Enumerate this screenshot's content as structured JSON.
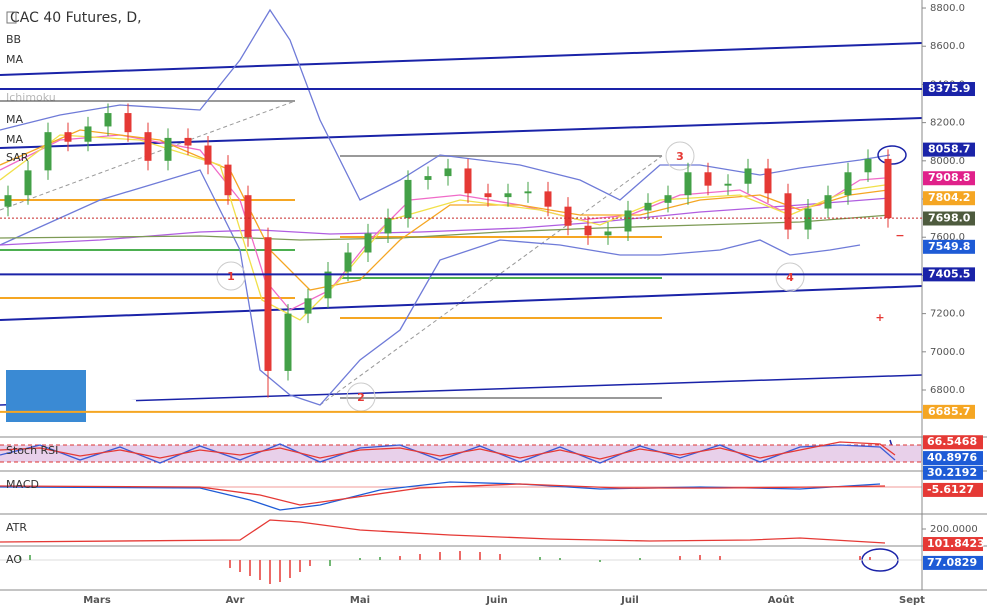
{
  "chart_data": {
    "type": "candlestick",
    "title": "CAC 40 Futures, D,",
    "indicators": [
      "BB",
      "MA",
      "Ichimoku",
      "MA",
      "MA",
      "SAR"
    ],
    "ylim": [
      6554,
      8842
    ],
    "yticks": [
      {
        "value": 8800,
        "label": "8800.0"
      },
      {
        "value": 8600,
        "label": "8600.0"
      },
      {
        "value": 8400,
        "label": "8400.0"
      },
      {
        "value": 8200,
        "label": "8200.0"
      },
      {
        "value": 8000,
        "label": "8000.0"
      },
      {
        "value": 7800,
        "label": "7800.0"
      },
      {
        "value": 7600,
        "label": "7600.0"
      },
      {
        "value": 7400,
        "label": "7400.0"
      },
      {
        "value": 7200,
        "label": "7200.0"
      },
      {
        "value": 7000,
        "label": "7000.0"
      },
      {
        "value": 6800,
        "label": "6800.0"
      }
    ],
    "xlabels": [
      "Mars",
      "Avr",
      "Mai",
      "Juin",
      "Juil",
      "Août",
      "Sept"
    ],
    "up_color": "#43a047",
    "down_color": "#e53935",
    "open": [
      7760,
      7820,
      7950,
      8150,
      8100,
      8180,
      8250,
      8150,
      8000,
      8120,
      8080,
      7980,
      7820,
      7600,
      6900,
      7200,
      7280,
      7420,
      7520,
      7620,
      7700,
      7900,
      7920,
      7960,
      7830,
      7810,
      7830,
      7840,
      7760,
      7660,
      7610,
      7630,
      7740,
      7780,
      7820,
      7940,
      7870,
      7880,
      7960,
      7830,
      7640,
      7750,
      7820,
      7940,
      8010
    ],
    "high": [
      7870,
      8000,
      8200,
      8200,
      8230,
      8300,
      8300,
      8200,
      8170,
      8170,
      8130,
      8030,
      7870,
      7650,
      7250,
      7330,
      7470,
      7570,
      7670,
      7750,
      7950,
      7970,
      8010,
      8010,
      7880,
      7880,
      7890,
      7890,
      7810,
      7710,
      7680,
      7790,
      7830,
      7870,
      7990,
      7990,
      7930,
      8010,
      8010,
      7880,
      7800,
      7870,
      7990,
      8060,
      8060
    ],
    "low": [
      7710,
      7770,
      7900,
      8050,
      8050,
      8130,
      8100,
      7950,
      7950,
      8030,
      7930,
      7770,
      7550,
      6760,
      6850,
      7150,
      7230,
      7370,
      7470,
      7570,
      7650,
      7850,
      7870,
      7780,
      7760,
      7760,
      7780,
      7710,
      7610,
      7560,
      7560,
      7580,
      7690,
      7730,
      7770,
      7820,
      7820,
      7830,
      7780,
      7590,
      7590,
      7700,
      7770,
      7890,
      7650
    ],
    "close": [
      7820,
      7950,
      8150,
      8100,
      8180,
      8250,
      8150,
      8000,
      8120,
      8080,
      7980,
      7820,
      7600,
      6900,
      7200,
      7280,
      7420,
      7520,
      7620,
      7700,
      7900,
      7920,
      7960,
      7830,
      7810,
      7830,
      7840,
      7760,
      7660,
      7610,
      7630,
      7740,
      7780,
      7820,
      7940,
      7870,
      7880,
      7960,
      7830,
      7640,
      7750,
      7820,
      7940,
      8010,
      7700
    ],
    "price_tags": [
      {
        "value": 8375.9,
        "label": "8375.9",
        "color": "#1a23a8",
        "line": true
      },
      {
        "value": 8058.7,
        "label": "8058.7",
        "color": "#1a23a8",
        "line": false
      },
      {
        "value": 7908.8,
        "label": "7908.8",
        "color": "#e0218a",
        "line": false
      },
      {
        "value": 7804.2,
        "label": "7804.2",
        "color": "#f5a623",
        "line": false
      },
      {
        "value": 7698,
        "label": "7698.0",
        "color": "#4e5b3e",
        "line": false
      },
      {
        "value": 7549.8,
        "label": "7549.8",
        "color": "#1e5bd6",
        "line": false
      },
      {
        "value": 7405.5,
        "label": "7405.5",
        "color": "#1a23a8",
        "line": true
      },
      {
        "value": 6685.7,
        "label": "6685.7",
        "color": "#f5a623",
        "line": true
      }
    ],
    "annotations": [
      "1",
      "2",
      "3",
      "4",
      "+",
      "−"
    ],
    "panels": [
      {
        "name": "Stoch RSI",
        "ylim": [
          20,
          75
        ],
        "yticks": [],
        "tags": [
          {
            "value": 66.5468,
            "label": "66.5468",
            "color": "#e53935"
          },
          {
            "value": 40.8976,
            "label": "40.8976",
            "color": "#1e5bd6"
          }
        ]
      },
      {
        "name": "MACD",
        "ylim": [
          -56,
          34
        ],
        "yticks": [],
        "tags": [
          {
            "value": 30.2192,
            "label": "30.2192",
            "color": "#1e5bd6"
          },
          {
            "value": -5.6127,
            "label": "-5.6127",
            "color": "#e53935"
          }
        ]
      },
      {
        "name": "ATR",
        "ylim": [
          89,
          298
        ],
        "yticks": [
          {
            "value": 200,
            "label": "200.0000"
          }
        ],
        "tags": [
          {
            "value": 101.8423,
            "label": "101.8423",
            "color": "#e53935"
          }
        ]
      },
      {
        "name": "AO",
        "ylim": [
          -200,
          250
        ],
        "yticks": [],
        "tags": [
          {
            "value": 77.0829,
            "label": "77.0829",
            "color": "#1e5bd6"
          }
        ]
      }
    ]
  }
}
